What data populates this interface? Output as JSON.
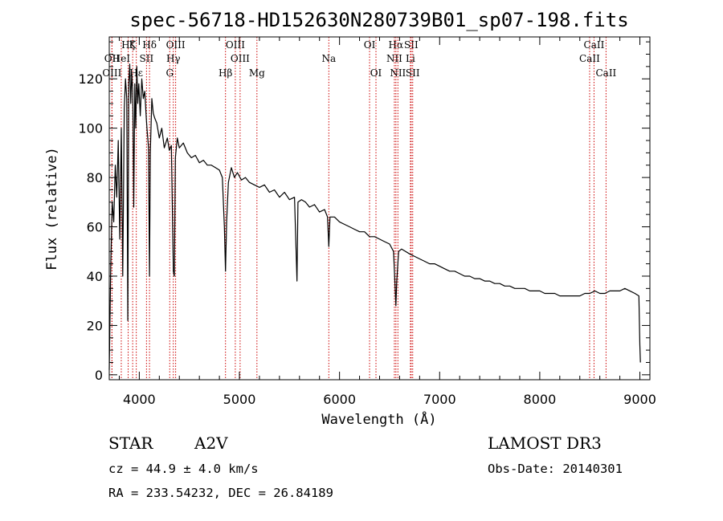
{
  "chart_data": {
    "type": "line",
    "title": "spec-56718-HD152630N280739B01_sp07-198.fits",
    "xlabel": "Wavelength (Å)",
    "ylabel": "Flux (relative)",
    "xlim": [
      3700,
      9100
    ],
    "ylim": [
      -2,
      137
    ],
    "xticks": [
      4000,
      5000,
      6000,
      7000,
      8000,
      9000
    ],
    "yticks": [
      0,
      20,
      40,
      60,
      80,
      100,
      120
    ],
    "grid": false,
    "series": [
      {
        "points": [
          [
            3700,
            2
          ],
          [
            3715,
            45
          ],
          [
            3730,
            70
          ],
          [
            3745,
            62
          ],
          [
            3760,
            85
          ],
          [
            3775,
            72
          ],
          [
            3790,
            95
          ],
          [
            3805,
            55
          ],
          [
            3820,
            100
          ],
          [
            3835,
            40
          ],
          [
            3850,
            108
          ],
          [
            3862,
            120
          ],
          [
            3875,
            112
          ],
          [
            3885,
            22
          ],
          [
            3895,
            118
          ],
          [
            3905,
            126
          ],
          [
            3915,
            110
          ],
          [
            3925,
            122
          ],
          [
            3935,
            115
          ],
          [
            3945,
            68
          ],
          [
            3955,
            118
          ],
          [
            3965,
            100
          ],
          [
            3975,
            125
          ],
          [
            3985,
            110
          ],
          [
            3995,
            118
          ],
          [
            4010,
            105
          ],
          [
            4025,
            120
          ],
          [
            4040,
            112
          ],
          [
            4055,
            115
          ],
          [
            4070,
            104
          ],
          [
            4080,
            98
          ],
          [
            4092,
            92
          ],
          [
            4102,
            40
          ],
          [
            4110,
            90
          ],
          [
            4125,
            112
          ],
          [
            4140,
            106
          ],
          [
            4155,
            104
          ],
          [
            4175,
            102
          ],
          [
            4200,
            96
          ],
          [
            4225,
            100
          ],
          [
            4250,
            92
          ],
          [
            4280,
            96
          ],
          [
            4300,
            91
          ],
          [
            4320,
            93
          ],
          [
            4340,
            42
          ],
          [
            4350,
            40
          ],
          [
            4360,
            88
          ],
          [
            4380,
            96
          ],
          [
            4400,
            92
          ],
          [
            4440,
            94
          ],
          [
            4480,
            90
          ],
          [
            4520,
            88
          ],
          [
            4560,
            89
          ],
          [
            4600,
            86
          ],
          [
            4640,
            87
          ],
          [
            4680,
            85
          ],
          [
            4720,
            85
          ],
          [
            4760,
            84
          ],
          [
            4800,
            83
          ],
          [
            4830,
            80
          ],
          [
            4850,
            60
          ],
          [
            4861,
            42
          ],
          [
            4872,
            62
          ],
          [
            4890,
            78
          ],
          [
            4920,
            84
          ],
          [
            4950,
            80
          ],
          [
            4980,
            82
          ],
          [
            5020,
            79
          ],
          [
            5060,
            80
          ],
          [
            5100,
            78
          ],
          [
            5150,
            77
          ],
          [
            5200,
            76
          ],
          [
            5250,
            77
          ],
          [
            5300,
            74
          ],
          [
            5350,
            75
          ],
          [
            5400,
            72
          ],
          [
            5450,
            74
          ],
          [
            5500,
            71
          ],
          [
            5550,
            72
          ],
          [
            5575,
            38
          ],
          [
            5585,
            70
          ],
          [
            5620,
            71
          ],
          [
            5660,
            70
          ],
          [
            5700,
            68
          ],
          [
            5750,
            69
          ],
          [
            5800,
            66
          ],
          [
            5850,
            67
          ],
          [
            5880,
            64
          ],
          [
            5893,
            52
          ],
          [
            5905,
            64
          ],
          [
            5950,
            64
          ],
          [
            6000,
            62
          ],
          [
            6050,
            61
          ],
          [
            6100,
            60
          ],
          [
            6150,
            59
          ],
          [
            6200,
            58
          ],
          [
            6250,
            58
          ],
          [
            6300,
            56
          ],
          [
            6350,
            56
          ],
          [
            6400,
            55
          ],
          [
            6450,
            54
          ],
          [
            6500,
            53
          ],
          [
            6540,
            50
          ],
          [
            6555,
            36
          ],
          [
            6563,
            28
          ],
          [
            6572,
            38
          ],
          [
            6590,
            50
          ],
          [
            6620,
            51
          ],
          [
            6660,
            50
          ],
          [
            6700,
            49
          ],
          [
            6750,
            48
          ],
          [
            6800,
            47
          ],
          [
            6850,
            46
          ],
          [
            6900,
            45
          ],
          [
            6950,
            45
          ],
          [
            7000,
            44
          ],
          [
            7050,
            43
          ],
          [
            7100,
            42
          ],
          [
            7150,
            42
          ],
          [
            7200,
            41
          ],
          [
            7250,
            40
          ],
          [
            7300,
            40
          ],
          [
            7350,
            39
          ],
          [
            7400,
            39
          ],
          [
            7450,
            38
          ],
          [
            7500,
            38
          ],
          [
            7550,
            37
          ],
          [
            7600,
            37
          ],
          [
            7650,
            36
          ],
          [
            7700,
            36
          ],
          [
            7750,
            35
          ],
          [
            7800,
            35
          ],
          [
            7850,
            35
          ],
          [
            7900,
            34
          ],
          [
            7950,
            34
          ],
          [
            8000,
            34
          ],
          [
            8050,
            33
          ],
          [
            8100,
            33
          ],
          [
            8150,
            33
          ],
          [
            8200,
            32
          ],
          [
            8250,
            32
          ],
          [
            8300,
            32
          ],
          [
            8350,
            32
          ],
          [
            8400,
            32
          ],
          [
            8450,
            33
          ],
          [
            8500,
            33
          ],
          [
            8550,
            34
          ],
          [
            8600,
            33
          ],
          [
            8650,
            33
          ],
          [
            8700,
            34
          ],
          [
            8750,
            34
          ],
          [
            8800,
            34
          ],
          [
            8850,
            35
          ],
          [
            8900,
            34
          ],
          [
            8950,
            33
          ],
          [
            8990,
            32
          ],
          [
            9000,
            12
          ],
          [
            9005,
            5
          ]
        ],
        "color": "#000000"
      }
    ],
    "line_markers": [
      {
        "label": "Hζ",
        "x": 3889,
        "row": 0
      },
      {
        "label": "K",
        "x": 3934,
        "row": 0
      },
      {
        "label": "Hδ",
        "x": 4102,
        "row": 0
      },
      {
        "label": "OIII",
        "x": 4363,
        "row": 0
      },
      {
        "label": "OIII",
        "x": 4959,
        "row": 0
      },
      {
        "label": "OI",
        "x": 6300,
        "row": 0
      },
      {
        "label": "Hα",
        "x": 6563,
        "row": 0
      },
      {
        "label": "SII",
        "x": 6716,
        "row": 0
      },
      {
        "label": "CaII",
        "x": 8542,
        "row": 0
      },
      {
        "label": "OII",
        "x": 3727,
        "row": 1
      },
      {
        "label": "HeI",
        "x": 3820,
        "row": 1
      },
      {
        "label": "SII",
        "x": 4072,
        "row": 1
      },
      {
        "label": "Hγ",
        "x": 4340,
        "row": 1
      },
      {
        "label": "OIII",
        "x": 5007,
        "row": 1
      },
      {
        "label": "Na",
        "x": 5893,
        "row": 1
      },
      {
        "label": "NII",
        "x": 6548,
        "row": 1
      },
      {
        "label": "Li",
        "x": 6708,
        "row": 1
      },
      {
        "label": "CaII",
        "x": 8498,
        "row": 1
      },
      {
        "label": "OIII",
        "x": 3727,
        "row": 2
      },
      {
        "label": "Hε",
        "x": 3970,
        "row": 2
      },
      {
        "label": "G",
        "x": 4304,
        "row": 2
      },
      {
        "label": "Hβ",
        "x": 4861,
        "row": 2
      },
      {
        "label": "Mg",
        "x": 5175,
        "row": 2
      },
      {
        "label": "OI",
        "x": 6364,
        "row": 2
      },
      {
        "label": "NII",
        "x": 6583,
        "row": 2
      },
      {
        "label": "SII",
        "x": 6731,
        "row": 2
      },
      {
        "label": "CaII",
        "x": 8662,
        "row": 2
      }
    ],
    "marker_color": "#cc0000"
  },
  "info": {
    "class": "STAR",
    "subclass": "A2V",
    "survey": "LAMOST DR3",
    "cz": "cz = 44.9 ± 4.0 km/s",
    "obs_date": "Obs-Date: 20140301",
    "coords": "RA = 233.54232, DEC =  26.84189"
  }
}
